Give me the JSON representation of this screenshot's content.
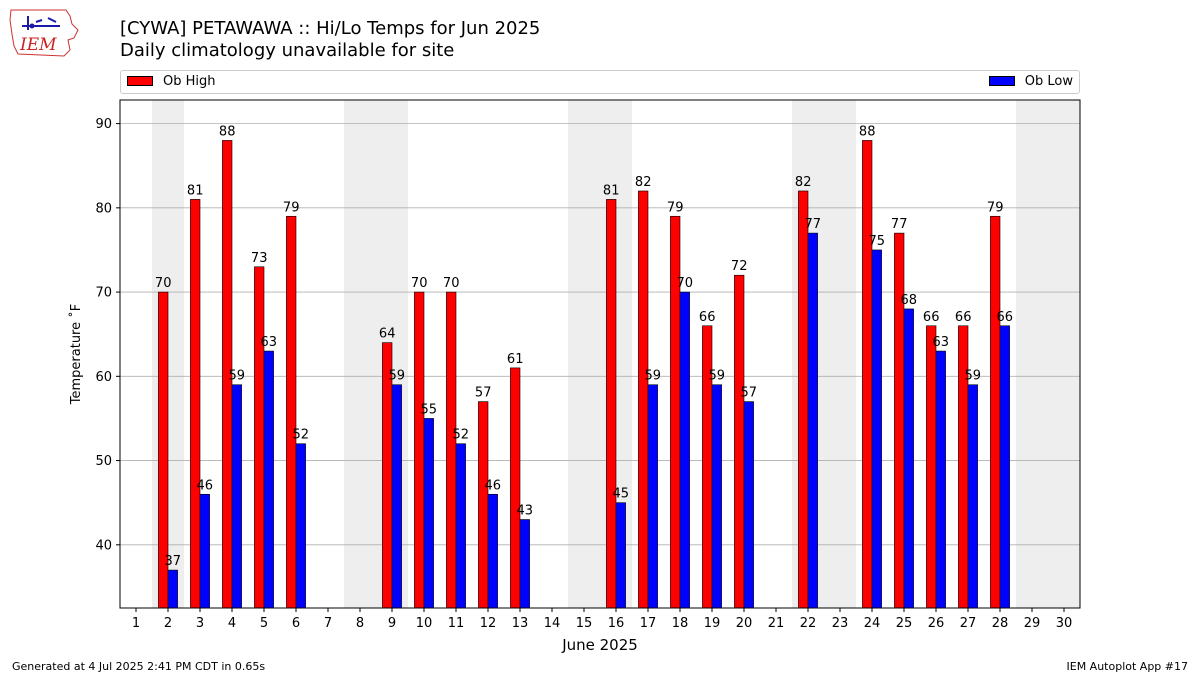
{
  "logo": {
    "text": "IEM"
  },
  "chart_data": {
    "type": "bar",
    "title": "[CYWA] PETAWAWA :: Hi/Lo Temps for Jun 2025",
    "subtitle": "Daily climatology unavailable for site",
    "xlabel": "June 2025",
    "ylabel": "Temperature ˚F",
    "ylim": [
      32.5,
      92.8
    ],
    "yticks": [
      40,
      50,
      60,
      70,
      80,
      90
    ],
    "grid": true,
    "legend_placement": "top",
    "categories": [
      "1",
      "2",
      "3",
      "4",
      "5",
      "6",
      "7",
      "8",
      "9",
      "10",
      "11",
      "12",
      "13",
      "14",
      "15",
      "16",
      "17",
      "18",
      "19",
      "20",
      "21",
      "22",
      "23",
      "24",
      "25",
      "26",
      "27",
      "28",
      "29",
      "30"
    ],
    "weekend_shading": [
      [
        1,
        1
      ],
      [
        7,
        8
      ],
      [
        14,
        15
      ],
      [
        21,
        22
      ],
      [
        28,
        29
      ]
    ],
    "series": [
      {
        "name": "Ob High",
        "color": "#ff0000",
        "values": [
          null,
          70,
          81,
          88,
          73,
          79,
          null,
          null,
          64,
          70,
          70,
          57,
          61,
          null,
          null,
          81,
          82,
          79,
          66,
          72,
          null,
          82,
          null,
          88,
          77,
          66,
          66,
          79,
          null,
          null
        ]
      },
      {
        "name": "Ob Low",
        "color": "#0000ff",
        "values": [
          null,
          37,
          46,
          59,
          63,
          52,
          null,
          null,
          59,
          55,
          52,
          46,
          43,
          null,
          null,
          45,
          59,
          70,
          59,
          57,
          null,
          77,
          null,
          75,
          68,
          63,
          59,
          66,
          null,
          null
        ]
      }
    ]
  },
  "footer": {
    "left": "Generated at 4 Jul 2025 2:41 PM CDT in 0.65s",
    "right": "IEM Autoplot App #17"
  },
  "colors": {
    "shading": "#eeeeee",
    "grid": "#b0b0b0"
  }
}
